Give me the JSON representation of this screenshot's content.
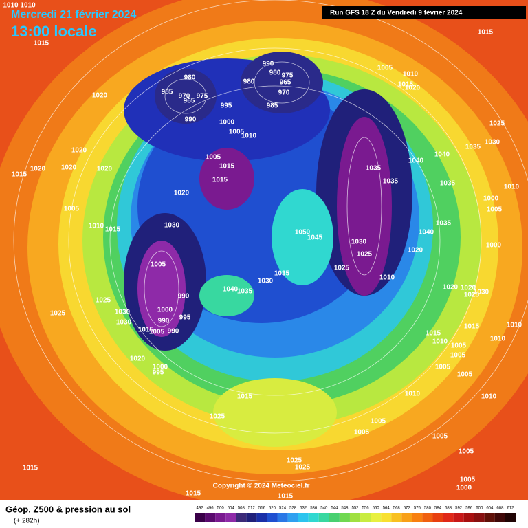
{
  "header": {
    "date": "Mercredi 21 février 2024",
    "time": "13:00 locale",
    "run": "Run GFS 18 Z du Vendredi 9 février 2024",
    "copyright": "Copyright © 2024 Meteociel.fr"
  },
  "footer": {
    "title": "Géop. Z500 & pression au sol",
    "lead": "(+ 282h)"
  },
  "isobar_labels": [
    "1010 1010",
    "1015",
    "1015",
    "1020",
    "980",
    "985",
    "970",
    "975",
    "965",
    "990",
    "995",
    "990",
    "980",
    "975",
    "980",
    "965",
    "970",
    "985",
    "1000",
    "1005",
    "1010",
    "1005",
    "1010",
    "1015",
    "1020",
    "1025",
    "1035",
    "1030",
    "1020",
    "1020",
    "1020",
    "1020",
    "1015",
    "1005",
    "1015",
    "1015",
    "1035",
    "1040",
    "1040",
    "1035",
    "1035",
    "1020",
    "1005",
    "1010",
    "1000",
    "1005",
    "1000",
    "1030",
    "1015",
    "1010",
    "1035",
    "1040",
    "1050",
    "1045",
    "1030",
    "1025",
    "1025",
    "1010",
    "1020",
    "1005",
    "1035",
    "1030",
    "1040",
    "1035",
    "990",
    "1025",
    "1000",
    "1030",
    "1030",
    "995",
    "990",
    "1025",
    "1015",
    "1005",
    "990",
    "1020",
    "1000",
    "995",
    "1020",
    "1020",
    "1030",
    "1025",
    "1015",
    "1010",
    "1010",
    "1015",
    "1010",
    "1005",
    "1005",
    "1005",
    "1005",
    "1015",
    "1025",
    "1010",
    "1010",
    "1005",
    "1005",
    "1005",
    "1005",
    "1025",
    "1025",
    "1015",
    "1005",
    "1000",
    "1015",
    "1015"
  ],
  "colorbar": {
    "ticks": [
      492,
      496,
      500,
      504,
      508,
      512,
      516,
      520,
      524,
      528,
      532,
      536,
      540,
      544,
      548,
      552,
      556,
      560,
      564,
      568,
      572,
      576,
      580,
      584,
      588,
      592,
      596,
      600,
      604,
      608,
      612
    ],
    "colors": [
      "#3a0048",
      "#5a0a6e",
      "#7a1a90",
      "#8e2aa8",
      "#3c2a78",
      "#20207a",
      "#1a2fa8",
      "#1f4fd0",
      "#2a78e6",
      "#2fa0f0",
      "#2cc4ee",
      "#30d8d0",
      "#38d8a0",
      "#48d070",
      "#70d850",
      "#a0e040",
      "#c8ec40",
      "#e8f040",
      "#f8e030",
      "#f8c020",
      "#f8a018",
      "#f88010",
      "#f06010",
      "#e84010",
      "#e02818",
      "#c81818",
      "#a81010",
      "#881010",
      "#601008",
      "#400808",
      "#200404"
    ]
  }
}
